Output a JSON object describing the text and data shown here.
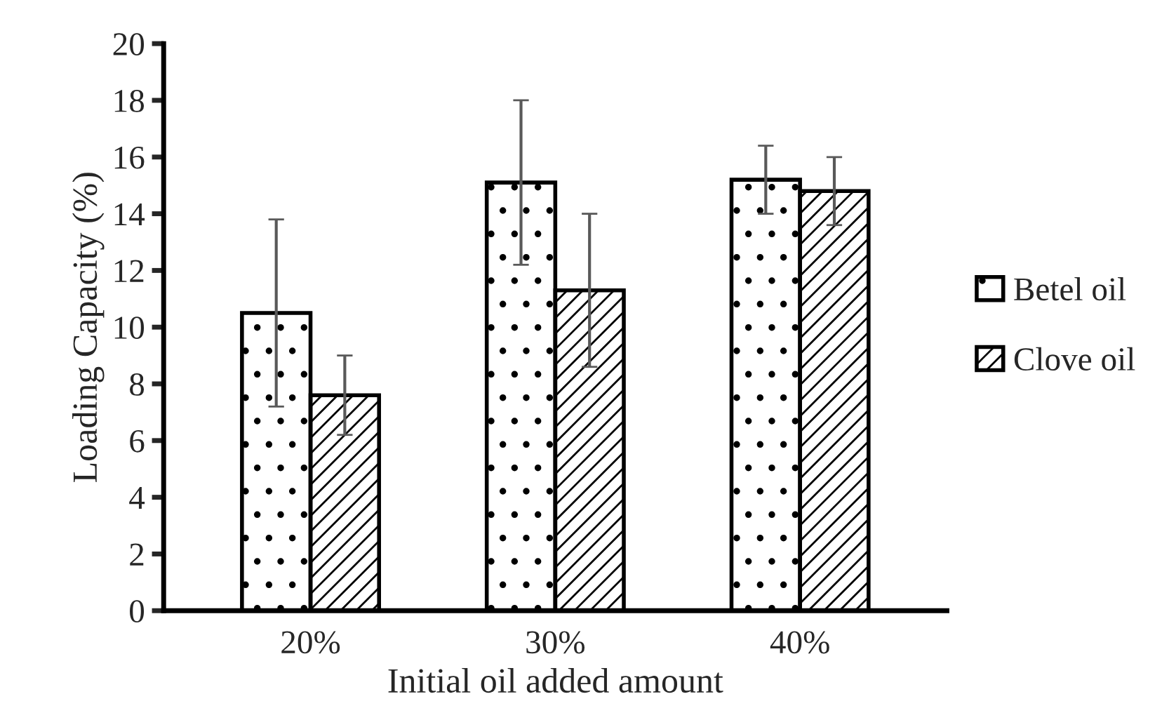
{
  "chart_data": {
    "type": "bar",
    "xlabel": "Initial oil added amount",
    "ylabel": "Loading Capacity (%)",
    "categories": [
      "20%",
      "30%",
      "40%"
    ],
    "series": [
      {
        "name": "Betel oil",
        "color": "#ffffff",
        "values": [
          10.5,
          15.1,
          15.2
        ],
        "errors": [
          3.3,
          2.9,
          1.2
        ]
      },
      {
        "name": "Clove oil",
        "color": "#ffffff",
        "values": [
          7.6,
          11.3,
          14.8
        ],
        "errors": [
          1.4,
          2.7,
          1.2
        ]
      }
    ],
    "ylim": [
      0,
      20
    ],
    "yticks": [
      0,
      2,
      4,
      6,
      8,
      10,
      12,
      14,
      16,
      18,
      20
    ],
    "grid": false,
    "legend": "right"
  }
}
